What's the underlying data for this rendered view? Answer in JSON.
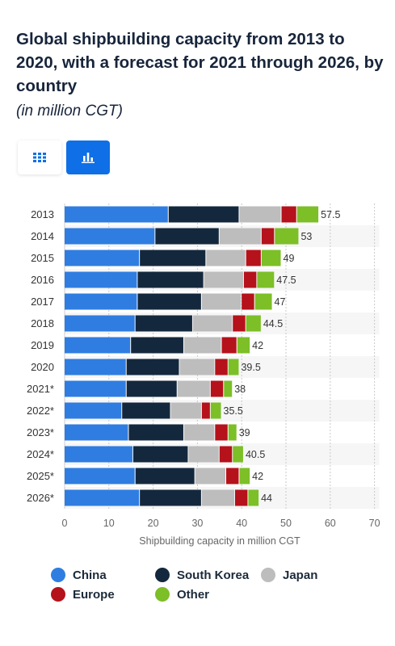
{
  "header": {
    "title": "Global shipbuilding capacity from 2013 to 2020, with a forecast for 2021 through 2026, by country",
    "subtitle": "(in million CGT)"
  },
  "view_toggle": {
    "table_icon": "table-grid-icon",
    "chart_icon": "bar-chart-icon",
    "active": "chart",
    "active_color": "#0f6fe6"
  },
  "chart_data": {
    "type": "bar",
    "orientation": "horizontal",
    "stacked": true,
    "title": "Global shipbuilding capacity from 2013 to 2020, with a forecast for 2021 through 2026, by country",
    "subtitle": "(in million CGT)",
    "xlabel": "Shipbuilding capacity in million CGT",
    "ylabel": "",
    "xlim": [
      0,
      70
    ],
    "xticks": [
      0,
      10,
      20,
      30,
      40,
      50,
      60,
      70
    ],
    "grid": true,
    "legend_position": "bottom",
    "categories": [
      "2013",
      "2014",
      "2015",
      "2016",
      "2017",
      "2018",
      "2019",
      "2020",
      "2021*",
      "2022*",
      "2023*",
      "2024*",
      "2025*",
      "2026*"
    ],
    "totals": [
      "57.5",
      "53",
      "49",
      "47.5",
      "47",
      "44.5",
      "42",
      "39.5",
      "38",
      "35.5",
      "39",
      "40.5",
      "42",
      "44"
    ],
    "series": [
      {
        "name": "China",
        "color": "#2f7de1",
        "values": [
          23.5,
          20.5,
          17,
          16.5,
          16.5,
          16,
          15,
          14,
          14,
          13,
          14.5,
          15.5,
          16,
          17
        ]
      },
      {
        "name": "South Korea",
        "color": "#14283d",
        "values": [
          16,
          14.5,
          15,
          15,
          14.5,
          13,
          12,
          12,
          11.5,
          11,
          12.5,
          12.5,
          13.5,
          14
        ]
      },
      {
        "name": "Japan",
        "color": "#bdbdbd",
        "values": [
          9.5,
          9.5,
          9,
          9,
          9,
          9,
          8.5,
          8,
          7.5,
          7,
          7,
          7,
          7,
          7.5
        ]
      },
      {
        "name": "Europe",
        "color": "#b5121b",
        "values": [
          3.5,
          3,
          3.5,
          3,
          3,
          3,
          3.5,
          3,
          3,
          2,
          3,
          3,
          3,
          3
        ]
      },
      {
        "name": "Other",
        "color": "#7cbf27",
        "values": [
          5,
          5.5,
          4.5,
          4,
          4,
          3.5,
          3,
          2.5,
          2,
          2.5,
          2,
          2.5,
          2.5,
          2.5
        ]
      }
    ]
  }
}
